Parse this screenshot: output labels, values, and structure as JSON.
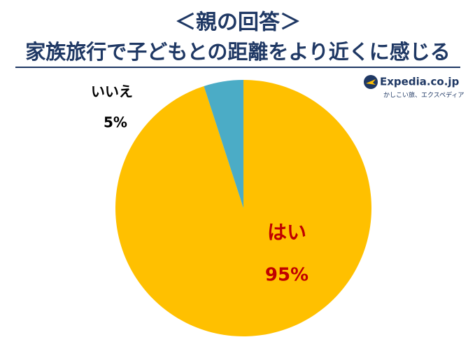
{
  "chart_data": {
    "type": "pie",
    "title": "＜親の回答＞",
    "subtitle": "家族旅行で子どもとの距離をより近くに感じる",
    "categories": [
      "はい",
      "いいえ"
    ],
    "values": [
      95,
      5
    ],
    "value_labels": [
      "95%",
      "5%"
    ],
    "colors": [
      "#FFC000",
      "#4BACC6"
    ],
    "label_colors": [
      "#C00000",
      "#000000"
    ]
  },
  "logo": {
    "name": "Expedia.co.jp",
    "tagline": "かしこい旅、エクスペディア"
  }
}
